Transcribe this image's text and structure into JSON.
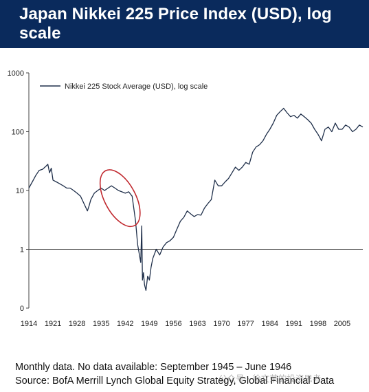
{
  "header": {
    "title": "Japan Nikkei 225 Price Index (USD), log scale"
  },
  "chart_data": {
    "type": "line",
    "title": "Japan Nikkei 225 Price Index (USD), log scale",
    "xlabel": "",
    "ylabel": "",
    "yscale": "log",
    "ylim": [
      0.1,
      1000
    ],
    "yticks": [
      1000,
      100,
      10,
      1,
      0.1
    ],
    "ytick_labels": [
      "1000",
      "100",
      "10",
      "1",
      "0"
    ],
    "xlim": [
      1914,
      2011
    ],
    "xticks": [
      1914,
      1921,
      1928,
      1935,
      1942,
      1949,
      1956,
      1963,
      1970,
      1977,
      1984,
      1991,
      1998,
      2005
    ],
    "xtick_labels": [
      "1914",
      "1921",
      "1928",
      "1935",
      "1942",
      "1949",
      "1956",
      "1963",
      "1970",
      "1977",
      "1984",
      "1991",
      "1998",
      "2005"
    ],
    "grid": false,
    "legend_position": "top-left",
    "series": [
      {
        "name": "Nikkei 225 Stock Average (USD), log scale",
        "color": "#1f2f4a",
        "x": [
          1914,
          1915,
          1916,
          1917,
          1918,
          1919,
          1919.5,
          1920,
          1920.5,
          1921,
          1922,
          1923,
          1924,
          1925,
          1926,
          1927,
          1928,
          1929,
          1930,
          1931,
          1931.5,
          1932,
          1933,
          1934,
          1935,
          1936,
          1937,
          1938,
          1939,
          1940,
          1941,
          1942,
          1943,
          1944,
          1945,
          1945.6,
          1946.5,
          1946.8,
          1947,
          1947.3,
          1947.6,
          1948,
          1948.5,
          1949,
          1949.5,
          1950,
          1951,
          1952,
          1953,
          1954,
          1955,
          1956,
          1957,
          1958,
          1959,
          1960,
          1961,
          1962,
          1963,
          1964,
          1965,
          1966,
          1967,
          1968,
          1969,
          1970,
          1971,
          1972,
          1973,
          1974,
          1975,
          1976,
          1977,
          1978,
          1979,
          1980,
          1981,
          1982,
          1983,
          1984,
          1985,
          1986,
          1987,
          1988,
          1989,
          1990,
          1991,
          1992,
          1993,
          1994,
          1995,
          1996,
          1997,
          1998,
          1999,
          2000,
          2001,
          2002,
          2003,
          2004,
          2005,
          2006,
          2007,
          2008,
          2009,
          2010,
          2011
        ],
        "values": [
          11,
          14,
          18,
          22,
          23,
          26,
          28,
          20,
          24,
          15,
          14,
          13,
          12,
          11,
          11,
          10,
          9,
          8,
          6,
          4.5,
          5.5,
          7,
          9,
          10,
          11,
          10,
          11,
          12,
          11,
          10,
          9.5,
          9,
          9.5,
          8,
          3,
          1.2,
          0.6,
          2.5,
          0.3,
          0.4,
          0.25,
          0.2,
          0.35,
          0.3,
          0.5,
          0.7,
          1.0,
          0.8,
          1.1,
          1.3,
          1.4,
          1.6,
          2.2,
          3.0,
          3.5,
          4.5,
          4.0,
          3.6,
          3.9,
          3.8,
          5,
          6,
          7,
          15,
          12,
          12,
          14,
          16,
          20,
          25,
          22,
          25,
          30,
          28,
          45,
          55,
          60,
          70,
          90,
          110,
          140,
          190,
          220,
          250,
          210,
          180,
          190,
          170,
          200,
          180,
          160,
          140,
          110,
          90,
          70,
          110,
          120,
          100,
          140,
          110,
          110,
          130,
          120,
          100,
          110,
          130,
          120
        ]
      }
    ],
    "annotations": [
      {
        "type": "ellipse",
        "label": "",
        "x_range": [
          1936,
          1945
        ],
        "y_range": [
          2.2,
          25
        ],
        "color": "#c0272d"
      }
    ]
  },
  "footnotes": {
    "line1": "Monthly data. No data available: September 1945 – June 1946",
    "line2": "Source: BofA Merrill Lynch Global Equity Strategy, Global Financial Data"
  },
  "watermark": {
    "text": "公众号 · 徐文荣的投资思考"
  }
}
